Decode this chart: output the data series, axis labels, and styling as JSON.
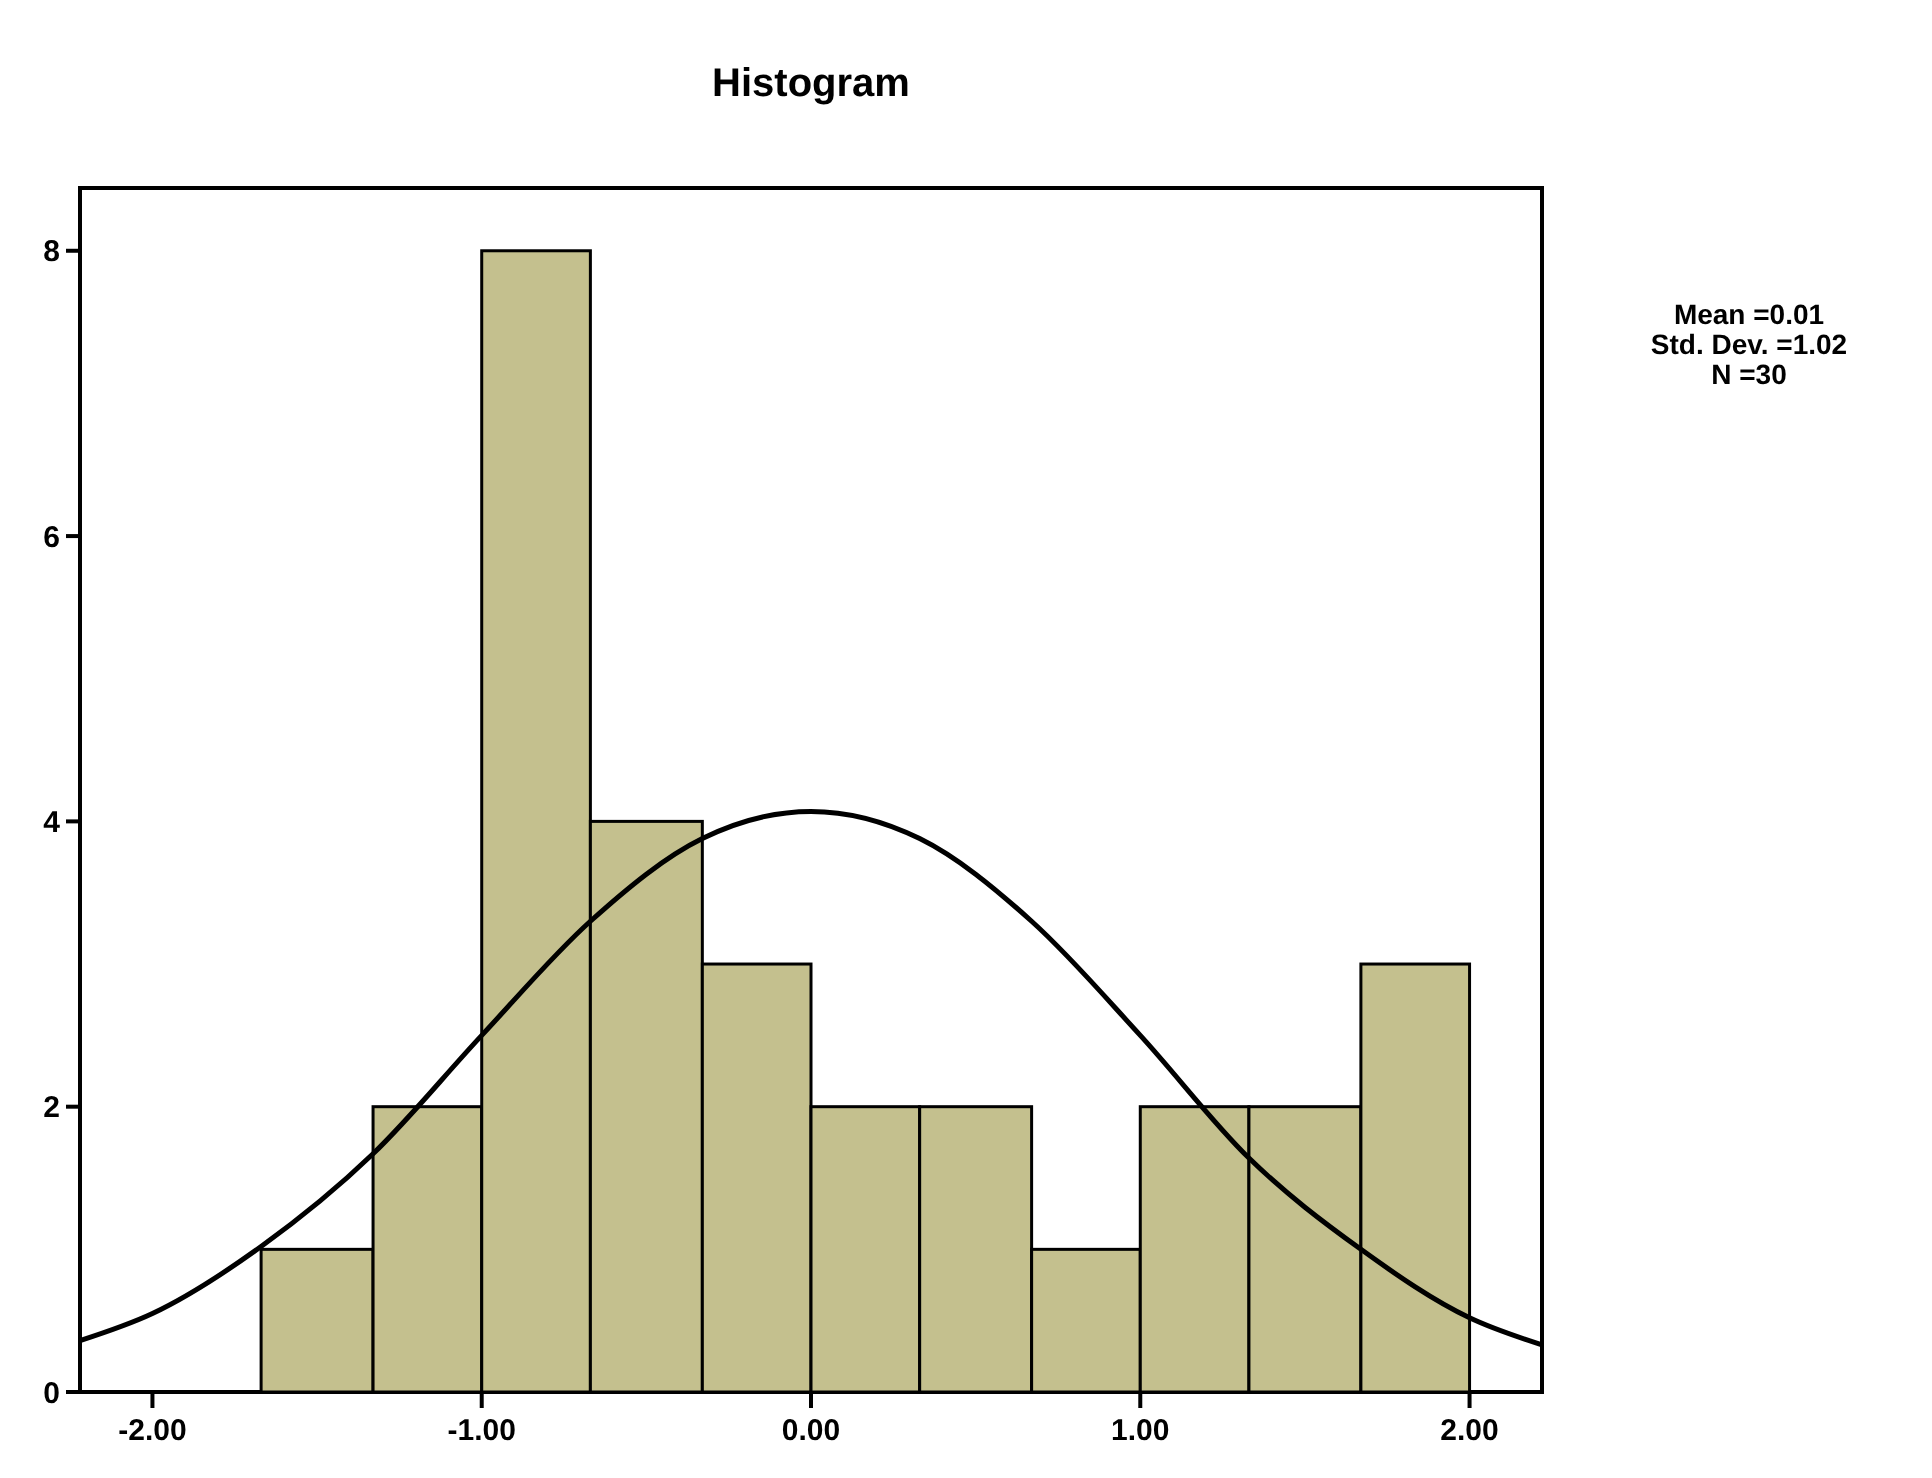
{
  "chart_data": {
    "type": "histogram",
    "title": "Histogram",
    "bins": [
      -1.67,
      -1.33,
      -1.0,
      -0.67,
      -0.33,
      0,
      0.33,
      0.67,
      1.0,
      1.33,
      1.67,
      2.0
    ],
    "series": [
      {
        "color": "#c4c08e",
        "values": [
          1,
          2,
          8,
          4,
          3,
          2,
          2,
          1,
          2,
          2,
          3
        ]
      },
      {
        "type": "line",
        "color": "#000000",
        "x": [
          -2.22,
          -2.0,
          -1.67,
          -1.33,
          -1.0,
          -0.67,
          -0.33,
          0,
          0.33,
          0.67,
          1.0,
          1.33,
          1.67,
          2.0,
          2.22
        ],
        "values": [
          0.36,
          0.55,
          1.02,
          1.67,
          2.5,
          3.3,
          3.88,
          4.07,
          3.88,
          3.3,
          2.5,
          1.64,
          1.0,
          0.52,
          0.33
        ]
      }
    ],
    "xlim": [
      -2.22,
      2.22
    ],
    "xticks": [
      {
        "value": -2,
        "label": "-2.00"
      },
      {
        "value": -1,
        "label": "-1.00"
      },
      {
        "value": 0,
        "label": "0.00"
      },
      {
        "value": 1,
        "label": "1.00"
      },
      {
        "value": 2,
        "label": "2.00"
      }
    ],
    "ylim": [
      0,
      8.44
    ],
    "yticks": [
      0,
      2,
      4,
      6,
      8
    ],
    "annotations": [
      "Mean =0.01",
      "Std. Dev. =1.02",
      "N =30"
    ]
  }
}
